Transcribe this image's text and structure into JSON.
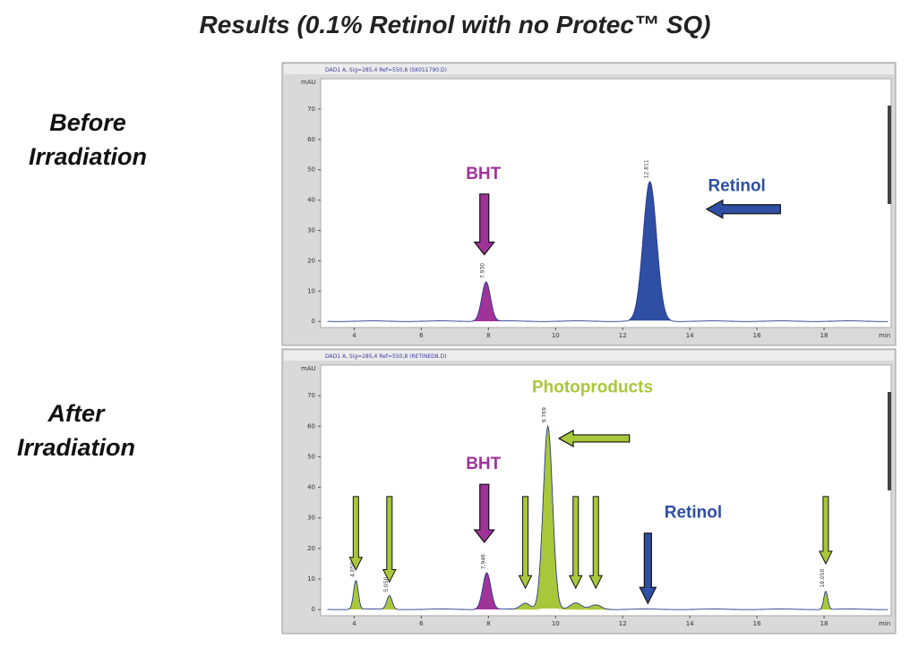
{
  "title": "Results (0.1% Retinol with no Protec™ SQ)",
  "side_labels": {
    "before": "Before\nIrradiation",
    "after": "After\nIrradiation"
  },
  "colors": {
    "purple": "#a0339a",
    "blue": "#2e4fa3",
    "green": "#a9c73b",
    "baseline": "#2b3b8f"
  },
  "chart_data": [
    {
      "type": "line",
      "header": "DAD1 A, Sig=285,4 Ref=550,8 (SK011790.D)",
      "ylabel": "mAU",
      "xunit": "min",
      "xlim": [
        3,
        20
      ],
      "ylim": [
        -2,
        80
      ],
      "xticks": [
        4,
        6,
        8,
        10,
        12,
        14,
        16,
        18
      ],
      "yticks": [
        0,
        10,
        20,
        30,
        40,
        50,
        60,
        70
      ],
      "peaks": [
        {
          "rt": 7.93,
          "height": 13,
          "label": "7.930",
          "color": "purple",
          "width": 0.13
        },
        {
          "rt": 12.81,
          "height": 46,
          "label": "12.811",
          "color": "blue",
          "width": 0.2
        }
      ],
      "annotations": [
        {
          "text": "BHT",
          "color": "purple",
          "x": 7.85,
          "y": 47,
          "arrow": "down",
          "arrow_from": 42,
          "arrow_to": 22
        },
        {
          "text": "Retinol",
          "color": "blue",
          "x": 15.4,
          "y": 43,
          "arrow": "left",
          "arrow_x_from": 16.7,
          "arrow_x_to": 14.5,
          "arrow_y": 37
        }
      ]
    },
    {
      "type": "line",
      "header": "DAD1 A, Sig=285,4 Ref=550,8 (RETINED8.D)",
      "ylabel": "mAU",
      "xunit": "min",
      "xlim": [
        3,
        20
      ],
      "ylim": [
        -2,
        80
      ],
      "xticks": [
        4,
        6,
        8,
        10,
        12,
        14,
        16,
        18
      ],
      "yticks": [
        0,
        10,
        20,
        30,
        40,
        50,
        60,
        70
      ],
      "peaks": [
        {
          "rt": 4.05,
          "height": 9.5,
          "label": "4.050",
          "color": "green",
          "width": 0.07
        },
        {
          "rt": 5.05,
          "height": 4.5,
          "label": "5.050",
          "color": "green",
          "width": 0.08
        },
        {
          "rt": 7.95,
          "height": 12,
          "label": "7.946",
          "color": "purple",
          "width": 0.12
        },
        {
          "rt": 9.1,
          "height": 2,
          "label": "",
          "color": "green",
          "width": 0.14
        },
        {
          "rt": 9.77,
          "height": 60,
          "label": "9.769",
          "color": "green",
          "width": 0.14
        },
        {
          "rt": 10.6,
          "height": 2,
          "label": "",
          "color": "green",
          "width": 0.16
        },
        {
          "rt": 11.2,
          "height": 1.5,
          "label": "",
          "color": "green",
          "width": 0.16
        },
        {
          "rt": 18.05,
          "height": 6,
          "label": "18.050",
          "color": "green",
          "width": 0.06
        }
      ],
      "annotations": [
        {
          "text": "Photoproducts",
          "color": "green",
          "x": 11.1,
          "y": 71,
          "arrow": "none"
        },
        {
          "text": "BHT",
          "color": "purple",
          "x": 7.85,
          "y": 46,
          "arrow": "down",
          "arrow_from": 41,
          "arrow_to": 22
        },
        {
          "text": "Retinol",
          "color": "blue",
          "x": 14.1,
          "y": 30,
          "arrow": "down-thin",
          "arrow_x": 12.75,
          "arrow_from": 25,
          "arrow_to": 2
        }
      ]
    }
  ]
}
